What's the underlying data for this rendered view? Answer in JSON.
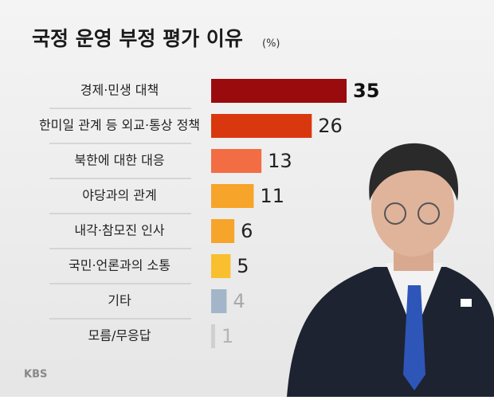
{
  "chart_data": {
    "type": "bar",
    "orientation": "horizontal",
    "title": "국정 운영 부정 평가 이유",
    "unit": "(%)",
    "categories": [
      "경제·민생 대책",
      "한미일 관계 등 외교·통상 정책",
      "북한에 대한 대응",
      "야당과의 관계",
      "내각·참모진 인사",
      "국민·언론과의 소통",
      "기타",
      "모름/무응답"
    ],
    "values": [
      35,
      26,
      13,
      11,
      6,
      5,
      4,
      1
    ],
    "colors": [
      "#9a0b0e",
      "#d9380f",
      "#f26d43",
      "#f7a42a",
      "#f7a42a",
      "#f9bf2e",
      "#a3b6c9",
      "#cfcfcf"
    ],
    "value_label_colors": [
      "#111111",
      "#222222",
      "#222222",
      "#222222",
      "#222222",
      "#222222",
      "#a9a9a9",
      "#b5b5b5"
    ],
    "xlim": [
      0,
      35
    ],
    "source": "KBS"
  }
}
